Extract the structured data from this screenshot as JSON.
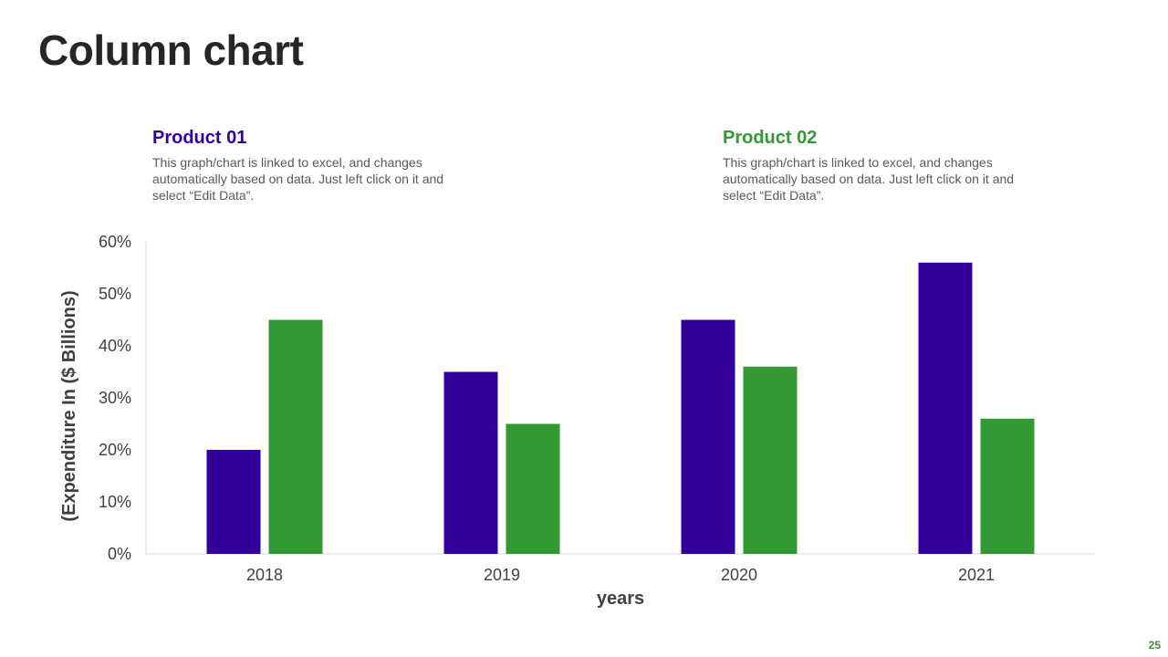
{
  "page": {
    "title": "Column chart",
    "page_number": "25"
  },
  "legend": [
    {
      "title": "Product 01",
      "color": "#330099",
      "desc": "This graph/chart is linked to excel, and changes automatically based on data. Just left click on it and select “Edit Data”."
    },
    {
      "title": "Product 02",
      "color": "#339933",
      "desc": "This graph/chart is linked to excel, and changes automatically based on data. Just left click on it and select “Edit Data”."
    }
  ],
  "colors": {
    "accent_green": "#339933",
    "axis_line": "#d9d9d9",
    "text": "#262626"
  },
  "chart_data": {
    "type": "bar",
    "title": "Column chart",
    "categories": [
      "2018",
      "2019",
      "2020",
      "2021"
    ],
    "series": [
      {
        "name": "Product 01",
        "values": [
          20,
          35,
          45,
          56
        ],
        "color": "#330099"
      },
      {
        "name": "Product 02",
        "values": [
          45,
          25,
          36,
          26
        ],
        "color": "#339933"
      }
    ],
    "xlabel": "years",
    "ylabel": "(Expenditure In ($ Billions)",
    "ylim": [
      0,
      60
    ],
    "yticks": [
      0,
      10,
      20,
      30,
      40,
      50,
      60
    ],
    "ytick_labels": [
      "0%",
      "10%",
      "20%",
      "30%",
      "40%",
      "50%",
      "60%"
    ],
    "grid": false
  }
}
